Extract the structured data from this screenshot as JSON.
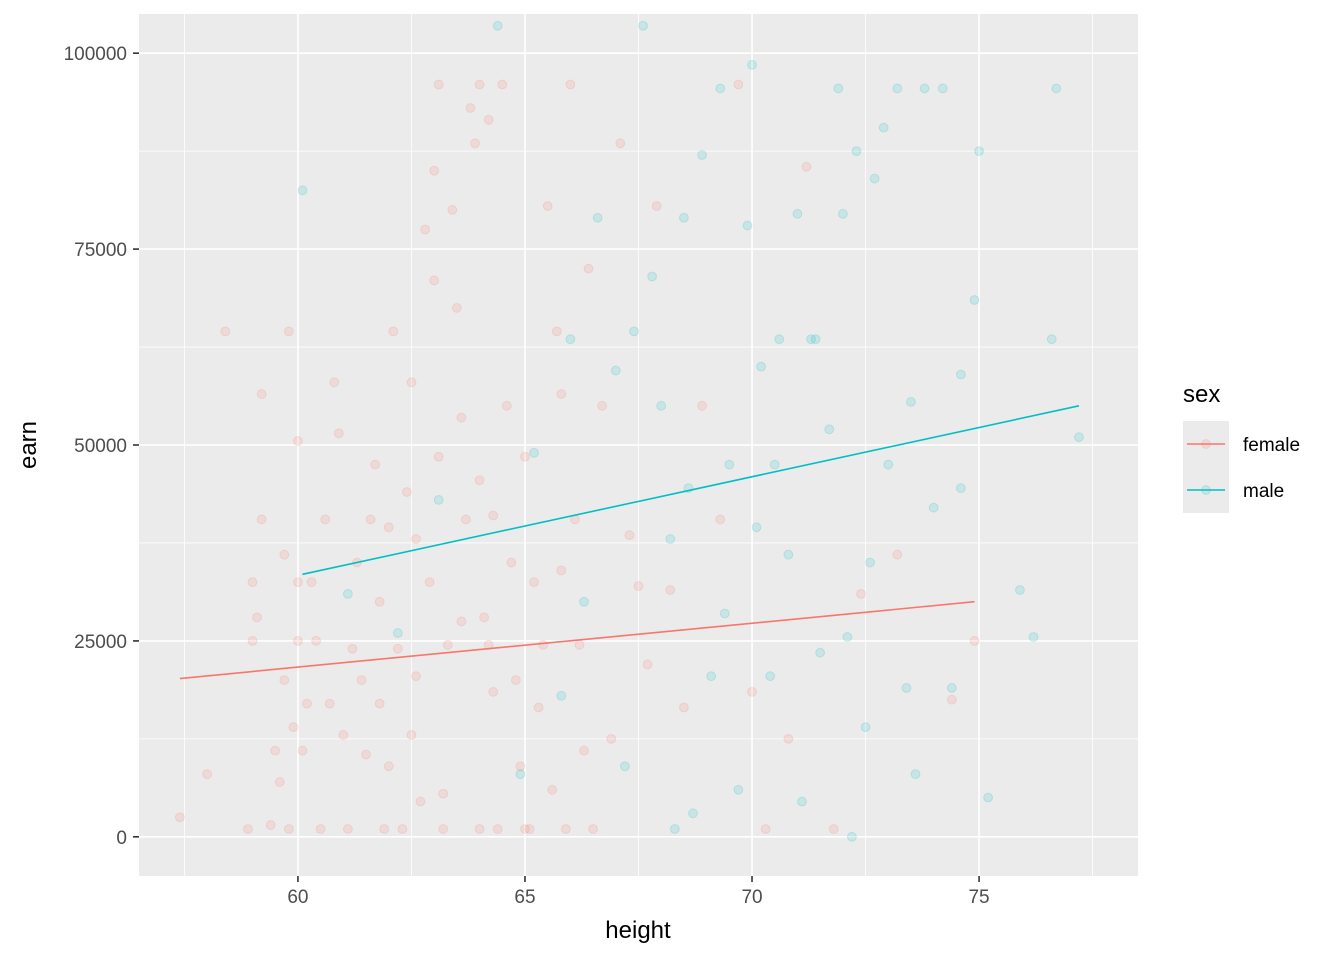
{
  "chart_data": {
    "type": "scatter",
    "xlabel": "height",
    "ylabel": "earn",
    "xlim": [
      56.5,
      78.5
    ],
    "ylim": [
      -5000,
      105000
    ],
    "x_ticks": [
      60,
      65,
      70,
      75
    ],
    "y_ticks": [
      0,
      25000,
      50000,
      75000,
      100000
    ],
    "x_tick_labels": [
      "60",
      "65",
      "70",
      "75"
    ],
    "y_tick_labels": [
      "0",
      "25000",
      "50000",
      "75000",
      "100000"
    ],
    "grid": true,
    "legend": {
      "title": "sex",
      "position": "right",
      "entries": [
        "female",
        "male"
      ]
    },
    "colors": {
      "female": "#F8766D",
      "male": "#00BFC4",
      "panel": "#EBEBEB",
      "grid": "#FFFFFF"
    },
    "series": [
      {
        "name": "female",
        "point_alpha": 0.15,
        "points": [
          [
            57.4,
            2500
          ],
          [
            58.0,
            8000
          ],
          [
            58.4,
            64500
          ],
          [
            58.9,
            1000
          ],
          [
            59.0,
            25000
          ],
          [
            59.0,
            32500
          ],
          [
            59.1,
            28000
          ],
          [
            59.2,
            40500
          ],
          [
            59.2,
            56500
          ],
          [
            59.4,
            1500
          ],
          [
            59.5,
            11000
          ],
          [
            59.6,
            7000
          ],
          [
            59.7,
            20000
          ],
          [
            59.7,
            36000
          ],
          [
            59.8,
            64500
          ],
          [
            59.8,
            1000
          ],
          [
            59.9,
            14000
          ],
          [
            60.0,
            32500
          ],
          [
            60.0,
            50500
          ],
          [
            60.0,
            25000
          ],
          [
            60.1,
            11000
          ],
          [
            60.2,
            17000
          ],
          [
            60.3,
            32500
          ],
          [
            60.4,
            25000
          ],
          [
            60.5,
            1000
          ],
          [
            60.6,
            40500
          ],
          [
            60.7,
            17000
          ],
          [
            60.8,
            58000
          ],
          [
            60.9,
            51500
          ],
          [
            61.0,
            13000
          ],
          [
            61.1,
            1000
          ],
          [
            61.2,
            24000
          ],
          [
            61.3,
            35000
          ],
          [
            61.4,
            20000
          ],
          [
            61.5,
            10500
          ],
          [
            61.6,
            40500
          ],
          [
            61.7,
            47500
          ],
          [
            61.8,
            17000
          ],
          [
            61.9,
            1000
          ],
          [
            62.0,
            39500
          ],
          [
            62.0,
            9000
          ],
          [
            62.1,
            64500
          ],
          [
            62.2,
            24000
          ],
          [
            62.3,
            1000
          ],
          [
            62.4,
            44000
          ],
          [
            62.5,
            58000
          ],
          [
            62.6,
            20500
          ],
          [
            62.7,
            4500
          ],
          [
            62.8,
            77500
          ],
          [
            62.9,
            32500
          ],
          [
            63.0,
            71000
          ],
          [
            63.0,
            85000
          ],
          [
            63.1,
            96000
          ],
          [
            63.1,
            48500
          ],
          [
            63.2,
            1000
          ],
          [
            63.3,
            24500
          ],
          [
            63.4,
            80000
          ],
          [
            63.5,
            67500
          ],
          [
            63.6,
            53500
          ],
          [
            63.7,
            40500
          ],
          [
            63.8,
            93000
          ],
          [
            63.9,
            88500
          ],
          [
            64.0,
            45500
          ],
          [
            64.0,
            96000
          ],
          [
            64.1,
            28000
          ],
          [
            64.2,
            24500
          ],
          [
            64.2,
            91500
          ],
          [
            64.3,
            18500
          ],
          [
            64.4,
            1000
          ],
          [
            64.5,
            96000
          ],
          [
            64.6,
            55000
          ],
          [
            64.7,
            35000
          ],
          [
            64.8,
            20000
          ],
          [
            64.9,
            9000
          ],
          [
            65.0,
            48500
          ],
          [
            65.1,
            1000
          ],
          [
            65.2,
            32500
          ],
          [
            65.3,
            16500
          ],
          [
            65.4,
            24500
          ],
          [
            65.5,
            80500
          ],
          [
            65.6,
            6000
          ],
          [
            65.7,
            64500
          ],
          [
            65.8,
            56500
          ],
          [
            65.9,
            1000
          ],
          [
            66.0,
            96000
          ],
          [
            66.1,
            40500
          ],
          [
            66.2,
            24500
          ],
          [
            66.3,
            11000
          ],
          [
            66.4,
            72500
          ],
          [
            66.5,
            1000
          ],
          [
            66.7,
            55000
          ],
          [
            66.9,
            12500
          ],
          [
            67.1,
            88500
          ],
          [
            67.3,
            38500
          ],
          [
            67.5,
            32000
          ],
          [
            67.7,
            22000
          ],
          [
            67.9,
            80500
          ],
          [
            68.2,
            31500
          ],
          [
            68.5,
            16500
          ],
          [
            68.9,
            55000
          ],
          [
            69.3,
            40500
          ],
          [
            69.7,
            96000
          ],
          [
            70.0,
            18500
          ],
          [
            70.3,
            1000
          ],
          [
            70.8,
            12500
          ],
          [
            71.2,
            85500
          ],
          [
            71.8,
            1000
          ],
          [
            72.4,
            31000
          ],
          [
            73.2,
            36000
          ],
          [
            74.4,
            17500
          ],
          [
            74.9,
            25000
          ],
          [
            62.5,
            13000
          ],
          [
            63.2,
            5500
          ],
          [
            64.0,
            1000
          ],
          [
            65.0,
            1000
          ],
          [
            61.8,
            30000
          ],
          [
            62.6,
            38000
          ],
          [
            63.6,
            27500
          ],
          [
            64.3,
            41000
          ],
          [
            65.8,
            34000
          ]
        ],
        "fit": {
          "x": [
            57.4,
            74.9
          ],
          "y": [
            20200,
            30000
          ]
        }
      },
      {
        "name": "male",
        "point_alpha": 0.15,
        "points": [
          [
            60.1,
            82500
          ],
          [
            61.1,
            31000
          ],
          [
            62.2,
            26000
          ],
          [
            63.1,
            43000
          ],
          [
            64.4,
            103500
          ],
          [
            64.9,
            8000
          ],
          [
            65.2,
            49000
          ],
          [
            65.8,
            18000
          ],
          [
            66.0,
            63500
          ],
          [
            66.3,
            30000
          ],
          [
            66.6,
            79000
          ],
          [
            67.0,
            59500
          ],
          [
            67.2,
            9000
          ],
          [
            67.4,
            64500
          ],
          [
            67.6,
            103500
          ],
          [
            67.8,
            71500
          ],
          [
            68.0,
            55000
          ],
          [
            68.2,
            38000
          ],
          [
            68.3,
            1000
          ],
          [
            68.5,
            79000
          ],
          [
            68.7,
            3000
          ],
          [
            68.9,
            87000
          ],
          [
            69.1,
            20500
          ],
          [
            69.3,
            95500
          ],
          [
            69.5,
            47500
          ],
          [
            69.7,
            6000
          ],
          [
            69.9,
            78000
          ],
          [
            70.0,
            98500
          ],
          [
            70.1,
            39500
          ],
          [
            70.2,
            60000
          ],
          [
            70.4,
            20500
          ],
          [
            70.6,
            63500
          ],
          [
            70.8,
            36000
          ],
          [
            71.0,
            79500
          ],
          [
            71.1,
            4500
          ],
          [
            71.3,
            63500
          ],
          [
            71.5,
            23500
          ],
          [
            71.7,
            52000
          ],
          [
            71.9,
            95500
          ],
          [
            72.0,
            79500
          ],
          [
            72.1,
            25500
          ],
          [
            72.2,
            0
          ],
          [
            72.3,
            87500
          ],
          [
            72.5,
            14000
          ],
          [
            72.7,
            84000
          ],
          [
            72.9,
            90500
          ],
          [
            73.0,
            47500
          ],
          [
            73.2,
            95500
          ],
          [
            73.4,
            19000
          ],
          [
            73.6,
            8000
          ],
          [
            73.8,
            95500
          ],
          [
            74.0,
            42000
          ],
          [
            74.2,
            95500
          ],
          [
            74.4,
            19000
          ],
          [
            74.6,
            59000
          ],
          [
            74.9,
            68500
          ],
          [
            75.0,
            87500
          ],
          [
            75.2,
            5000
          ],
          [
            75.9,
            31500
          ],
          [
            76.2,
            25500
          ],
          [
            76.6,
            63500
          ],
          [
            76.7,
            95500
          ],
          [
            77.2,
            51000
          ],
          [
            68.6,
            44500
          ],
          [
            69.4,
            28500
          ],
          [
            70.5,
            47500
          ],
          [
            71.4,
            63500
          ],
          [
            72.6,
            35000
          ],
          [
            73.5,
            55500
          ],
          [
            74.6,
            44500
          ]
        ],
        "fit": {
          "x": [
            60.1,
            77.2
          ],
          "y": [
            33500,
            55000
          ]
        }
      }
    ]
  }
}
